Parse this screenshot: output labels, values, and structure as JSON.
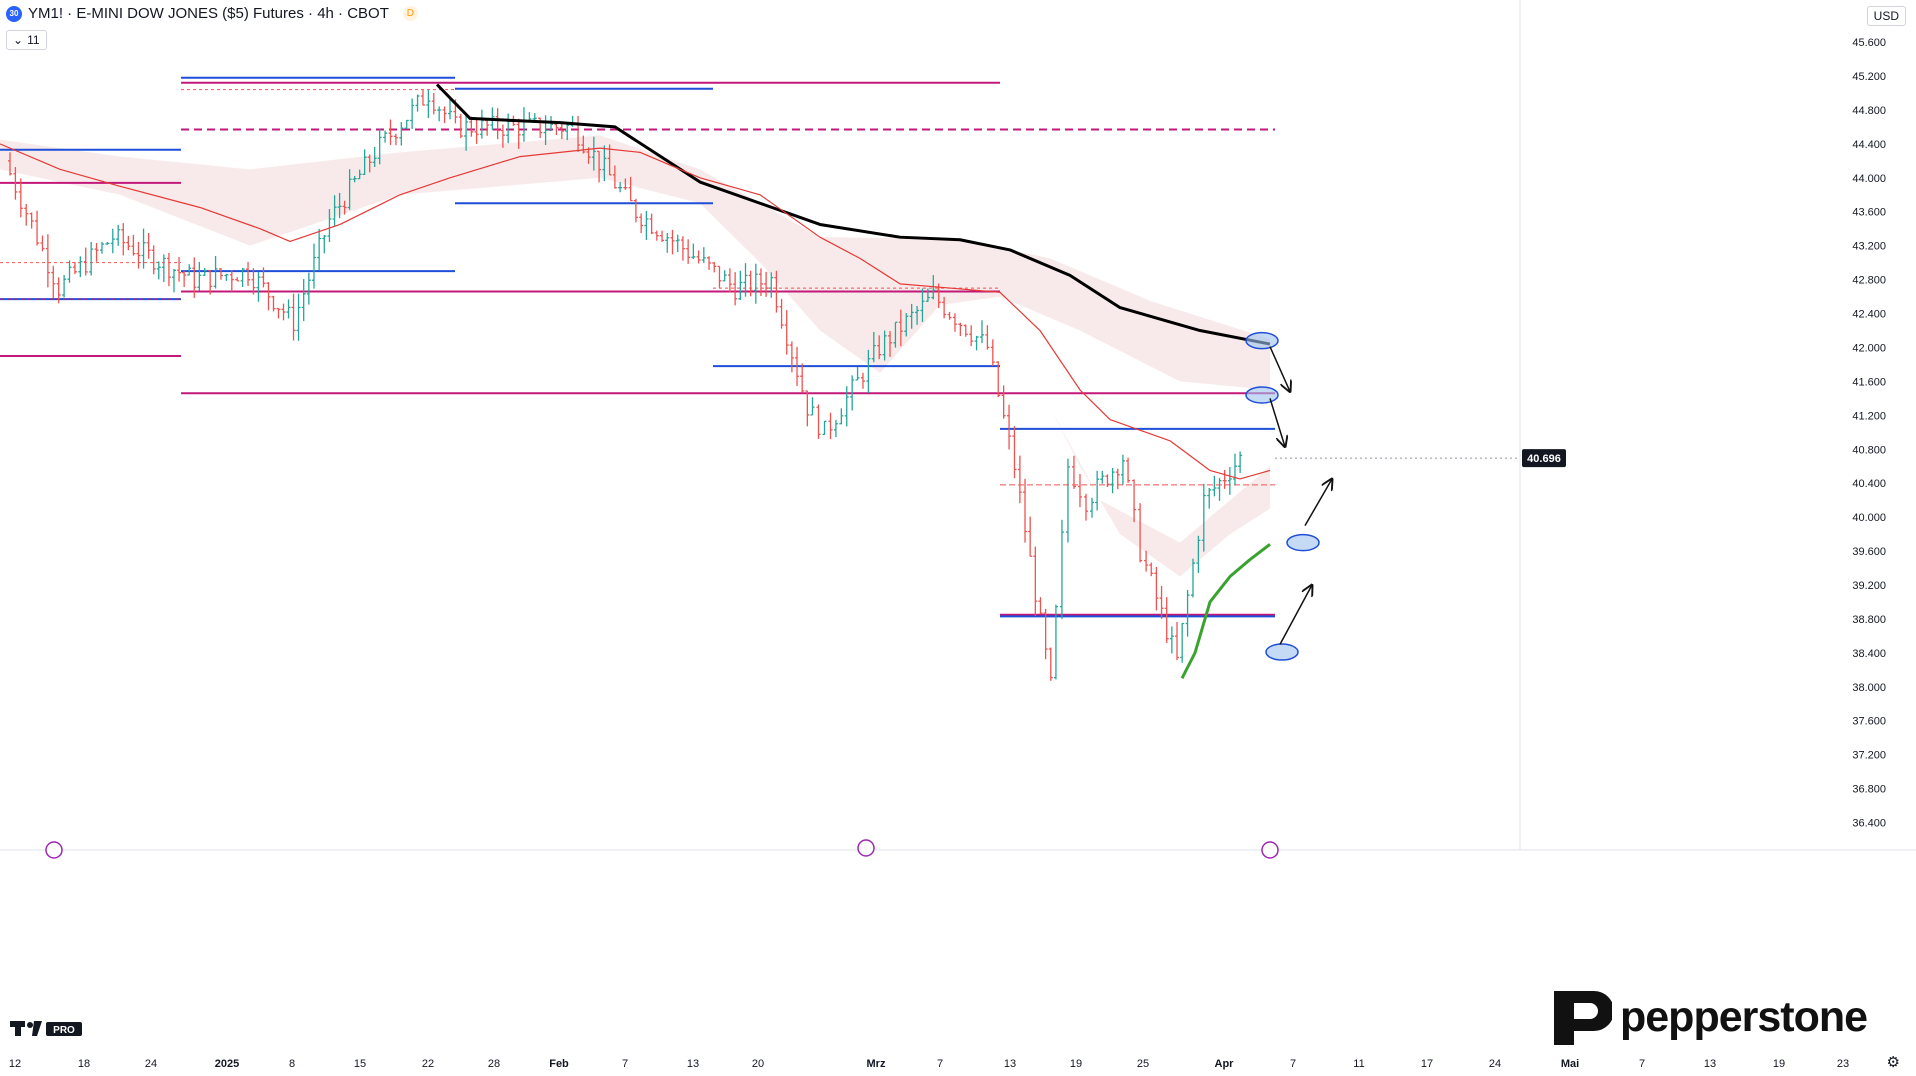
{
  "header": {
    "badge": "30",
    "title": "YM1! · E-MINI DOW JONES ($5) Futures · 4h · CBOT",
    "delay_badge": "D",
    "indicator_count": "11",
    "currency": "USD"
  },
  "last_price": {
    "label": "40.696",
    "value": 40696,
    "color": "#131722"
  },
  "logo": {
    "brand": "pepperstone"
  },
  "colors": {
    "up": "#26a69a",
    "down": "#ef5350",
    "level_blue": "#1e4fd8",
    "level_magenta": "#c2187a",
    "ma_black": "#000000",
    "ma_red": "#e53935",
    "ma_green": "#3aa22f",
    "cloud": "#f2d9d9"
  },
  "chart_data": {
    "type": "candlestick",
    "symbol": "YM1!",
    "timeframe": "4h",
    "price_axis": {
      "ticks": [
        "45.600",
        "45.200",
        "44.800",
        "44.400",
        "44.000",
        "43.600",
        "43.200",
        "42.800",
        "42.400",
        "42.000",
        "41.600",
        "41.200",
        "40.800",
        "40.400",
        "40.000",
        "39.600",
        "39.200",
        "38.800",
        "38.400",
        "38.000",
        "37.600",
        "37.200",
        "36.800",
        "36.400"
      ],
      "range": [
        36100,
        45900
      ]
    },
    "time_axis": {
      "ticks": [
        "12",
        "18",
        "24",
        "2025",
        "8",
        "15",
        "22",
        "28",
        "Feb",
        "7",
        "13",
        "20",
        "Mrz",
        "7",
        "13",
        "19",
        "25",
        "Apr",
        "7",
        "11",
        "17",
        "24",
        "Mai",
        "7",
        "13",
        "19",
        "23"
      ]
    },
    "approx_closes": [
      {
        "date": "2024-12-12",
        "close": 44200
      },
      {
        "date": "2024-12-18",
        "close": 42700
      },
      {
        "date": "2024-12-24",
        "close": 43300
      },
      {
        "date": "2025-01-02",
        "close": 42800
      },
      {
        "date": "2025-01-08",
        "close": 42900
      },
      {
        "date": "2025-01-13",
        "close": 42300
      },
      {
        "date": "2025-01-17",
        "close": 43500
      },
      {
        "date": "2025-01-22",
        "close": 44300
      },
      {
        "date": "2025-01-28",
        "close": 45000
      },
      {
        "date": "2025-01-31",
        "close": 44600
      },
      {
        "date": "2025-02-07",
        "close": 44600
      },
      {
        "date": "2025-02-13",
        "close": 44600
      },
      {
        "date": "2025-02-20",
        "close": 43600
      },
      {
        "date": "2025-03-03",
        "close": 42700
      },
      {
        "date": "2025-03-07",
        "close": 42800
      },
      {
        "date": "2025-03-11",
        "close": 41300
      },
      {
        "date": "2025-03-13",
        "close": 41000
      },
      {
        "date": "2025-03-19",
        "close": 42000
      },
      {
        "date": "2025-03-25",
        "close": 42600
      },
      {
        "date": "2025-03-31",
        "close": 42000
      },
      {
        "date": "2025-04-03",
        "close": 40600
      },
      {
        "date": "2025-04-07",
        "close": 38000
      },
      {
        "date": "2025-04-09",
        "close": 40600
      },
      {
        "date": "2025-04-11",
        "close": 40200
      },
      {
        "date": "2025-04-15",
        "close": 40700
      },
      {
        "date": "2025-04-17",
        "close": 39600
      },
      {
        "date": "2025-04-21",
        "close": 38300
      },
      {
        "date": "2025-04-24",
        "close": 40200
      },
      {
        "date": "2025-04-28",
        "close": 40696
      }
    ],
    "horizontal_levels": [
      {
        "price": 45180,
        "color": "blue"
      },
      {
        "price": 45120,
        "color": "magenta"
      },
      {
        "price": 44570,
        "color": "magenta",
        "style": "dashed"
      },
      {
        "price": 44330,
        "color": "blue"
      },
      {
        "price": 43940,
        "color": "magenta"
      },
      {
        "price": 43700,
        "color": "blue"
      },
      {
        "price": 42900,
        "color": "blue"
      },
      {
        "price": 42660,
        "color": "magenta"
      },
      {
        "price": 42570,
        "color": "blue"
      },
      {
        "price": 41900,
        "color": "magenta"
      },
      {
        "price": 41780,
        "color": "blue"
      },
      {
        "price": 41460,
        "color": "magenta"
      },
      {
        "price": 41040,
        "color": "blue"
      },
      {
        "price": 38850,
        "color": "magenta"
      },
      {
        "price": 38830,
        "color": "blue"
      }
    ],
    "moving_averages": [
      {
        "color": "black",
        "points": [
          [
            437,
            45100
          ],
          [
            470,
            44700
          ],
          [
            560,
            44650
          ],
          [
            615,
            44600
          ],
          [
            700,
            43950
          ],
          [
            760,
            43700
          ],
          [
            820,
            43450
          ],
          [
            900,
            43300
          ],
          [
            960,
            43270
          ],
          [
            1010,
            43150
          ],
          [
            1070,
            42850
          ],
          [
            1120,
            42470
          ],
          [
            1200,
            42200
          ],
          [
            1270,
            42040
          ]
        ]
      },
      {
        "color": "red",
        "points": [
          [
            0,
            44400
          ],
          [
            60,
            44100
          ],
          [
            120,
            43900
          ],
          [
            200,
            43650
          ],
          [
            260,
            43400
          ],
          [
            290,
            43250
          ],
          [
            340,
            43450
          ],
          [
            400,
            43800
          ],
          [
            450,
            44000
          ],
          [
            520,
            44250
          ],
          [
            600,
            44350
          ],
          [
            640,
            44300
          ],
          [
            700,
            44000
          ],
          [
            760,
            43800
          ],
          [
            820,
            43300
          ],
          [
            860,
            43050
          ],
          [
            900,
            42750
          ],
          [
            950,
            42700
          ],
          [
            1000,
            42650
          ],
          [
            1040,
            42200
          ],
          [
            1080,
            41500
          ],
          [
            1110,
            41150
          ],
          [
            1170,
            40900
          ],
          [
            1210,
            40550
          ],
          [
            1240,
            40450
          ],
          [
            1270,
            40550
          ]
        ]
      },
      {
        "color": "green",
        "points": [
          [
            1182,
            38100
          ],
          [
            1195,
            38400
          ],
          [
            1210,
            39000
          ],
          [
            1230,
            39300
          ],
          [
            1250,
            39500
          ],
          [
            1270,
            39680
          ]
        ]
      }
    ],
    "annotations": [
      {
        "type": "ellipse",
        "at": [
          1262,
          42080
        ]
      },
      {
        "type": "ellipse",
        "at": [
          1262,
          41440
        ]
      },
      {
        "type": "ellipse",
        "at": [
          1303,
          39700
        ]
      },
      {
        "type": "ellipse",
        "at": [
          1282,
          38410
        ]
      },
      {
        "type": "arrow",
        "from": [
          1270,
          42010
        ],
        "to": [
          1290,
          41480
        ]
      },
      {
        "type": "arrow",
        "from": [
          1270,
          41400
        ],
        "to": [
          1285,
          40830
        ]
      },
      {
        "type": "arrow",
        "from": [
          1305,
          39900
        ],
        "to": [
          1332,
          40450
        ]
      },
      {
        "type": "arrow",
        "from": [
          1280,
          38500
        ],
        "to": [
          1312,
          39200
        ]
      }
    ]
  }
}
